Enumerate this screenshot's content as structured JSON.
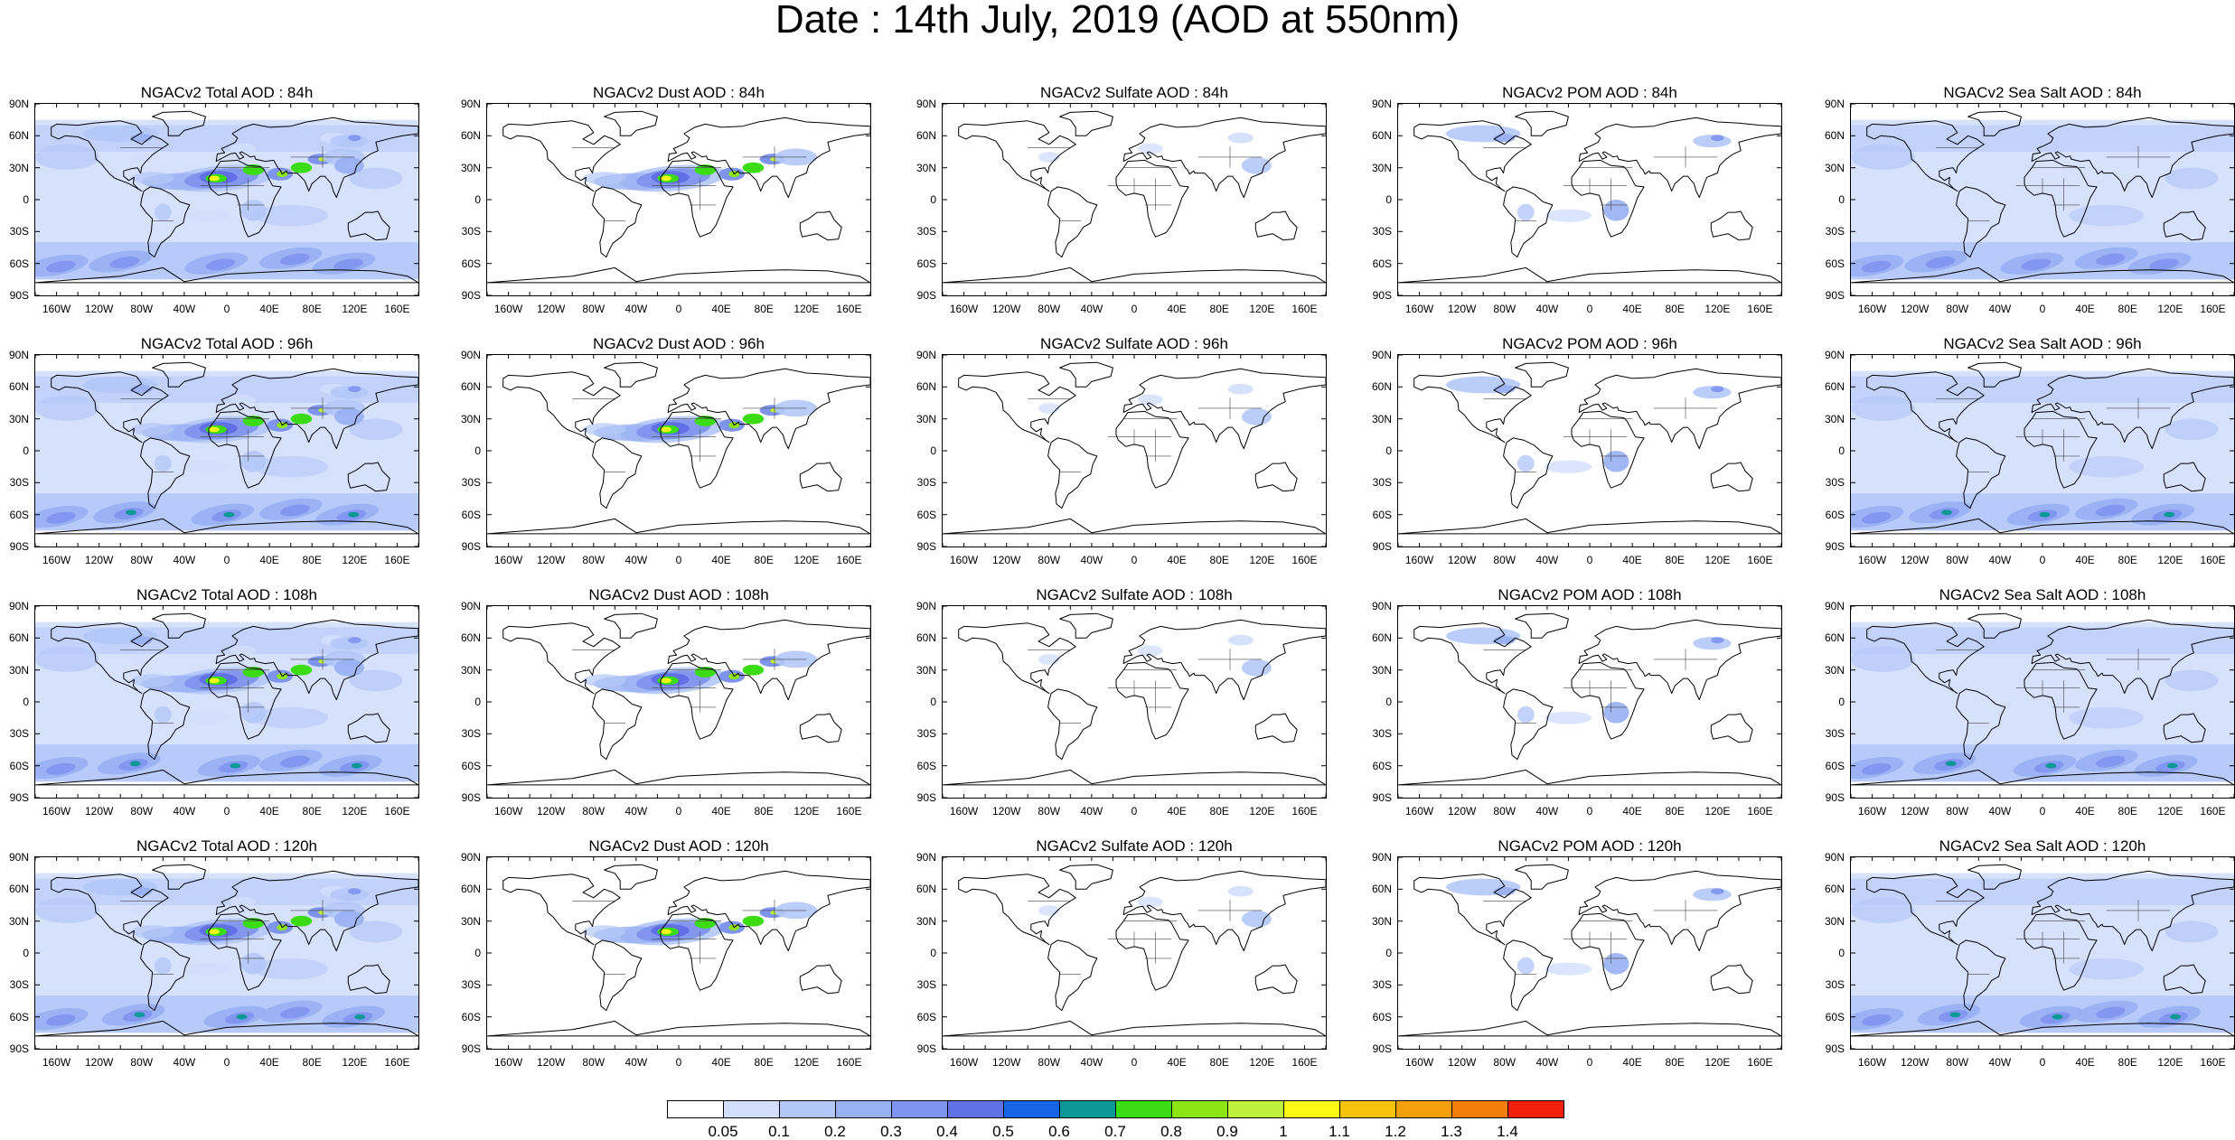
{
  "title": "Date : 14th July, 2019 (AOD at 550nm)",
  "y_tick_labels": [
    "90N",
    "60N",
    "30N",
    "0",
    "30S",
    "60S",
    "90S"
  ],
  "x_tick_labels": [
    "160W",
    "120W",
    "80W",
    "40W",
    "0",
    "40E",
    "80E",
    "120E",
    "160E"
  ],
  "panels": [
    {
      "title": "NGACv2 Total AOD : 84h",
      "species": "total",
      "hour": 84
    },
    {
      "title": "NGACv2 Dust AOD : 84h",
      "species": "dust",
      "hour": 84
    },
    {
      "title": "NGACv2 Sulfate AOD : 84h",
      "species": "sulfate",
      "hour": 84
    },
    {
      "title": "NGACv2 POM AOD : 84h",
      "species": "pom",
      "hour": 84
    },
    {
      "title": "NGACv2 Sea Salt AOD : 84h",
      "species": "seasalt",
      "hour": 84
    },
    {
      "title": "NGACv2 Total AOD : 96h",
      "species": "total",
      "hour": 96
    },
    {
      "title": "NGACv2 Dust AOD : 96h",
      "species": "dust",
      "hour": 96
    },
    {
      "title": "NGACv2 Sulfate AOD : 96h",
      "species": "sulfate",
      "hour": 96
    },
    {
      "title": "NGACv2 POM AOD : 96h",
      "species": "pom",
      "hour": 96
    },
    {
      "title": "NGACv2 Sea Salt AOD : 96h",
      "species": "seasalt",
      "hour": 96
    },
    {
      "title": "NGACv2 Total AOD : 108h",
      "species": "total",
      "hour": 108
    },
    {
      "title": "NGACv2 Dust AOD : 108h",
      "species": "dust",
      "hour": 108
    },
    {
      "title": "NGACv2 Sulfate AOD : 108h",
      "species": "sulfate",
      "hour": 108
    },
    {
      "title": "NGACv2 POM AOD : 108h",
      "species": "pom",
      "hour": 108
    },
    {
      "title": "NGACv2 Sea Salt AOD : 108h",
      "species": "seasalt",
      "hour": 108
    },
    {
      "title": "NGACv2 Total AOD : 120h",
      "species": "total",
      "hour": 120
    },
    {
      "title": "NGACv2 Dust AOD : 120h",
      "species": "dust",
      "hour": 120
    },
    {
      "title": "NGACv2 Sulfate AOD : 120h",
      "species": "sulfate",
      "hour": 120
    },
    {
      "title": "NGACv2 POM AOD : 120h",
      "species": "pom",
      "hour": 120
    },
    {
      "title": "NGACv2 Sea Salt  AOD : 120h",
      "species": "seasalt",
      "hour": 120
    }
  ],
  "colorbar": {
    "labels": [
      "0.05",
      "0.1",
      "0.2",
      "0.3",
      "0.4",
      "0.5",
      "0.6",
      "0.7",
      "0.8",
      "0.9",
      "1",
      "1.1",
      "1.2",
      "1.3",
      "1.4"
    ],
    "colors": [
      "#ffffff",
      "#d2defc",
      "#b4c8f8",
      "#98b0f4",
      "#7f94ee",
      "#6070e6",
      "#1466e6",
      "#0c9896",
      "#3cdc14",
      "#8ce614",
      "#bef03c",
      "#fafa14",
      "#f5c30a",
      "#f5a00a",
      "#f57d0a",
      "#f0200a"
    ]
  }
}
